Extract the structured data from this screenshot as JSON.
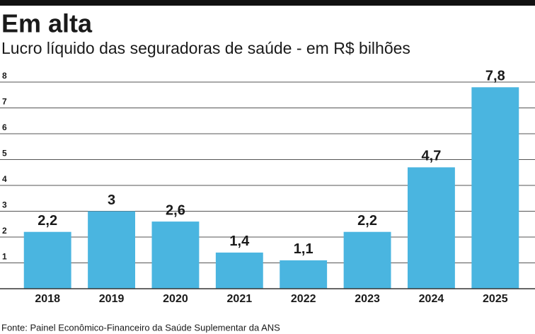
{
  "chart_data": {
    "type": "bar",
    "title": "Em alta",
    "subtitle": "Lucro líquido das seguradoras de saúde - em R$ bilhões",
    "categories": [
      "2018",
      "2019",
      "2020",
      "2021",
      "2022",
      "2023",
      "2024",
      "2025"
    ],
    "values": [
      2.2,
      3,
      2.6,
      1.4,
      1.1,
      2.2,
      4.7,
      7.8
    ],
    "value_labels": [
      "2,2",
      "3",
      "2,6",
      "1,4",
      "1,1",
      "2,2",
      "4,7",
      "7,8"
    ],
    "color": "#4ab5e0",
    "ylim": [
      0,
      8
    ],
    "yticks": [
      1,
      2,
      3,
      4,
      5,
      6,
      7,
      8
    ],
    "grid": true,
    "source": "Fonte: Painel Econômico-Financeiro da Saúde Suplementar da ANS"
  }
}
